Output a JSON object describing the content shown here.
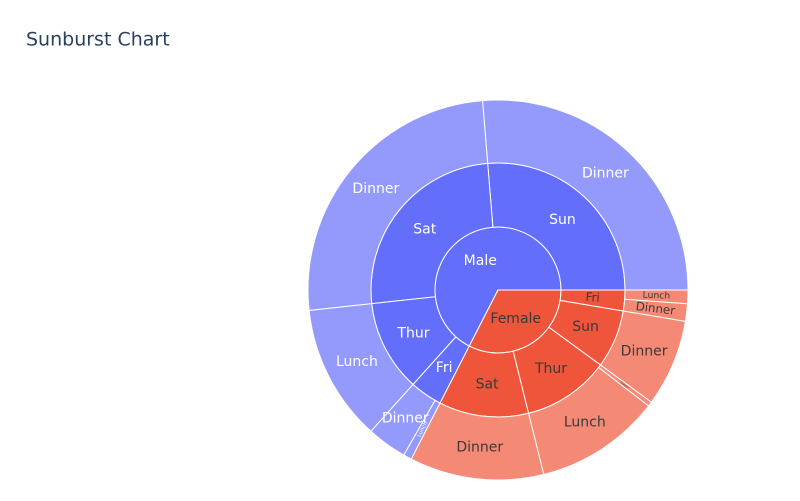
{
  "chart_data": {
    "type": "sunburst",
    "title": "Sunburst Chart",
    "nodes": [
      {
        "label": "Male",
        "value": 3256.82,
        "color": "#636efa",
        "textcolor": "#ffffff",
        "children": [
          {
            "label": "Sun",
            "value": 1269.46,
            "color": "#636efa",
            "children": [
              {
                "label": "Dinner",
                "value": 1269.46,
                "color": "#939afb"
              }
            ]
          },
          {
            "label": "Sat",
            "value": 1227.35,
            "color": "#636efa",
            "children": [
              {
                "label": "Dinner",
                "value": 1227.35,
                "color": "#939afb"
              }
            ]
          },
          {
            "label": "Thur",
            "value": 561.44,
            "color": "#636efa",
            "children": [
              {
                "label": "Lunch",
                "value": 561.44,
                "color": "#939afb"
              }
            ]
          },
          {
            "label": "Fri",
            "value": 198.57,
            "color": "#636efa",
            "children": [
              {
                "label": "Dinner",
                "value": 164.41,
                "color": "#939afb"
              },
              {
                "label": "Lunch",
                "value": 34.16,
                "color": "#939afb"
              }
            ]
          }
        ]
      },
      {
        "label": "Female",
        "value": 1570.95,
        "color": "#ef553b",
        "textcolor": "#3a3a3a",
        "children": [
          {
            "label": "Sat",
            "value": 551.05,
            "color": "#ef553b",
            "children": [
              {
                "label": "Dinner",
                "value": 551.05,
                "color": "#f48a75"
              }
            ]
          },
          {
            "label": "Thur",
            "value": 534.89,
            "color": "#ef553b",
            "children": [
              {
                "label": "Lunch",
                "value": 516.11,
                "color": "#f48a75"
              },
              {
                "label": "Dinner",
                "value": 18.78,
                "color": "#f48a75"
              }
            ]
          },
          {
            "label": "Sun",
            "value": 357.7,
            "color": "#ef553b",
            "children": [
              {
                "label": "Dinner",
                "value": 357.7,
                "color": "#f48a75"
              }
            ]
          },
          {
            "label": "Fri",
            "value": 127.31,
            "color": "#ef553b",
            "children": [
              {
                "label": "Dinner",
                "value": 71.55,
                "color": "#f48a75"
              },
              {
                "label": "Lunch",
                "value": 55.76,
                "color": "#f48a75"
              }
            ]
          }
        ]
      }
    ]
  }
}
